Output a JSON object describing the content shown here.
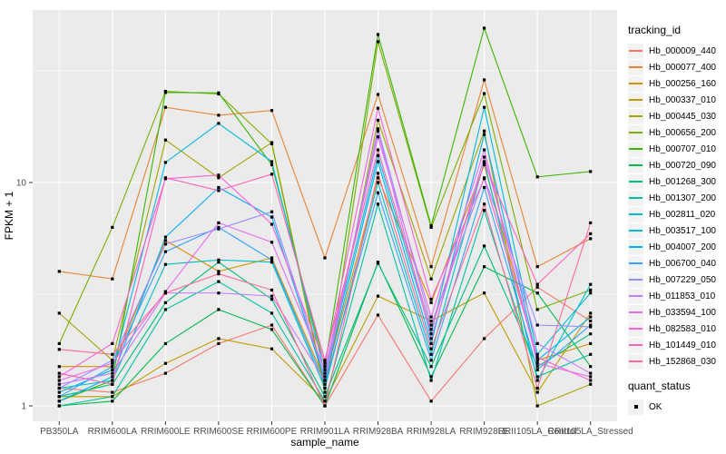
{
  "figure": {
    "panel_bg": "#EBEBEB",
    "grid_color": "#FFFFFF",
    "tick_color": "#333333",
    "tick_label_color": "#4D4D4D",
    "title_color": "#000000"
  },
  "legend": {
    "tracking_title": "tracking_id",
    "quant_title": "quant_status",
    "quant_items": [
      {
        "label": "OK"
      }
    ],
    "key_bg": "#F2F2F2",
    "marker_color": "#000000"
  },
  "chart_data": {
    "type": "line",
    "title": "",
    "xlabel": "sample_name",
    "ylabel": "FPKM + 1",
    "y_scale": "log10",
    "y_ticks": [
      1,
      10
    ],
    "y_minor_gridlines": [
      3.1623,
      31.6228
    ],
    "ylim": [
      0.85,
      59
    ],
    "grid": true,
    "legend_position": "right",
    "point_shape": "square",
    "point_color": "#000000",
    "point_legend_label": "OK",
    "categories": [
      "PB350LA",
      "RRIM600LA",
      "RRIM600LE",
      "RRIM600SE",
      "RRIM600PE",
      "RRIM901LA",
      "RRIM928BA",
      "RRIM928LA",
      "RRIM928LE",
      "RRII105LA_Control",
      "RRII105LA_Stressed"
    ],
    "series": [
      {
        "name": "Hb_000009_440",
        "color": "#F8766D",
        "values": [
          1.2,
          1.15,
          1.4,
          1.9,
          2.3,
          1.0,
          2.55,
          1.05,
          2.0,
          3.4,
          2.4
        ]
      },
      {
        "name": "Hb_000077_400",
        "color": "#EA8331",
        "values": [
          4.0,
          3.7,
          21.7,
          20.0,
          21.0,
          4.6,
          24.8,
          4.2,
          28.8,
          4.2,
          5.6
        ]
      },
      {
        "name": "Hb_000256_160",
        "color": "#D89000",
        "values": [
          1.5,
          1.5,
          5.5,
          4.0,
          4.6,
          1.3,
          10.5,
          2.9,
          12.0,
          1.6,
          1.9
        ]
      },
      {
        "name": "Hb_000337_010",
        "color": "#C09B00",
        "values": [
          1.1,
          1.1,
          1.55,
          2.0,
          1.8,
          1.05,
          3.1,
          2.4,
          3.2,
          1.15,
          2.6
        ]
      },
      {
        "name": "Hb_000445_030",
        "color": "#A3A500",
        "values": [
          2.6,
          1.6,
          15.5,
          10.5,
          15.1,
          1.2,
          19.0,
          3.7,
          17.0,
          1.0,
          1.25
        ]
      },
      {
        "name": "Hb_000656_200",
        "color": "#7CAE00",
        "values": [
          1.9,
          6.3,
          25.6,
          24.9,
          14.9,
          1.15,
          42.7,
          6.3,
          25.0,
          2.7,
          3.3
        ]
      },
      {
        "name": "Hb_000707_010",
        "color": "#39B600",
        "values": [
          1.05,
          1.3,
          25.3,
          25.2,
          12.0,
          1.5,
          46.0,
          6.4,
          49.1,
          10.6,
          11.2
        ]
      },
      {
        "name": "Hb_000720_090",
        "color": "#00BB4E",
        "values": [
          1.0,
          1.05,
          1.9,
          2.7,
          2.2,
          1.0,
          4.4,
          1.35,
          4.2,
          3.2,
          1.5
        ]
      },
      {
        "name": "Hb_001268_300",
        "color": "#00BF7D",
        "values": [
          1.1,
          1.25,
          2.9,
          4.4,
          3.0,
          1.1,
          4.35,
          1.5,
          5.2,
          1.5,
          2.1
        ]
      },
      {
        "name": "Hb_001307_200",
        "color": "#00C1A3",
        "values": [
          1.0,
          1.1,
          2.7,
          3.6,
          2.6,
          1.05,
          8.0,
          1.3,
          7.5,
          1.35,
          1.7
        ]
      },
      {
        "name": "Hb_002811_020",
        "color": "#00BFC4",
        "values": [
          1.2,
          1.3,
          4.3,
          4.5,
          4.4,
          1.2,
          10.0,
          1.7,
          12.4,
          1.3,
          3.5
        ]
      },
      {
        "name": "Hb_003517_100",
        "color": "#00BAE0",
        "values": [
          1.15,
          1.45,
          12.3,
          18.4,
          12.4,
          1.4,
          13.2,
          2.1,
          21.7,
          1.7,
          3.2
        ]
      },
      {
        "name": "Hb_004007_200",
        "color": "#00B0F6",
        "values": [
          1.05,
          1.35,
          5.7,
          9.5,
          7.0,
          1.3,
          12.4,
          1.9,
          16.4,
          1.6,
          2.5
        ]
      },
      {
        "name": "Hb_006700_040",
        "color": "#35A2FF",
        "values": [
          1.1,
          1.5,
          4.9,
          6.3,
          4.5,
          1.25,
          9.0,
          1.6,
          9.5,
          1.45,
          2.3
        ]
      },
      {
        "name": "Hb_007229_050",
        "color": "#9590FF",
        "values": [
          1.2,
          1.6,
          5.3,
          6.2,
          7.4,
          1.35,
          17.4,
          2.3,
          10.5,
          2.3,
          2.26
        ]
      },
      {
        "name": "Hb_011853_010",
        "color": "#C77CFF",
        "values": [
          1.25,
          1.4,
          3.2,
          3.2,
          3.1,
          1.3,
          17.0,
          2.0,
          13.0,
          1.9,
          1.4
        ]
      },
      {
        "name": "Hb_033594_100",
        "color": "#E76BF3",
        "values": [
          1.3,
          1.55,
          3.25,
          6.6,
          5.4,
          1.45,
          16.0,
          2.5,
          14.0,
          1.55,
          1.35
        ]
      },
      {
        "name": "Hb_082583_010",
        "color": "#FA62DB",
        "values": [
          1.35,
          1.9,
          10.4,
          10.8,
          6.5,
          1.55,
          21.5,
          3.0,
          10.4,
          1.65,
          1.3
        ]
      },
      {
        "name": "Hb_101449_010",
        "color": "#FF62BC",
        "values": [
          1.4,
          1.25,
          10.5,
          9.2,
          10.9,
          1.6,
          14.0,
          2.2,
          12.2,
          3.5,
          5.9
        ]
      },
      {
        "name": "Hb_152868_030",
        "color": "#FF6A98",
        "values": [
          1.79,
          1.7,
          3.2,
          3.9,
          3.3,
          1.0,
          11.0,
          1.8,
          8.0,
          1.2,
          6.6
        ]
      }
    ]
  }
}
